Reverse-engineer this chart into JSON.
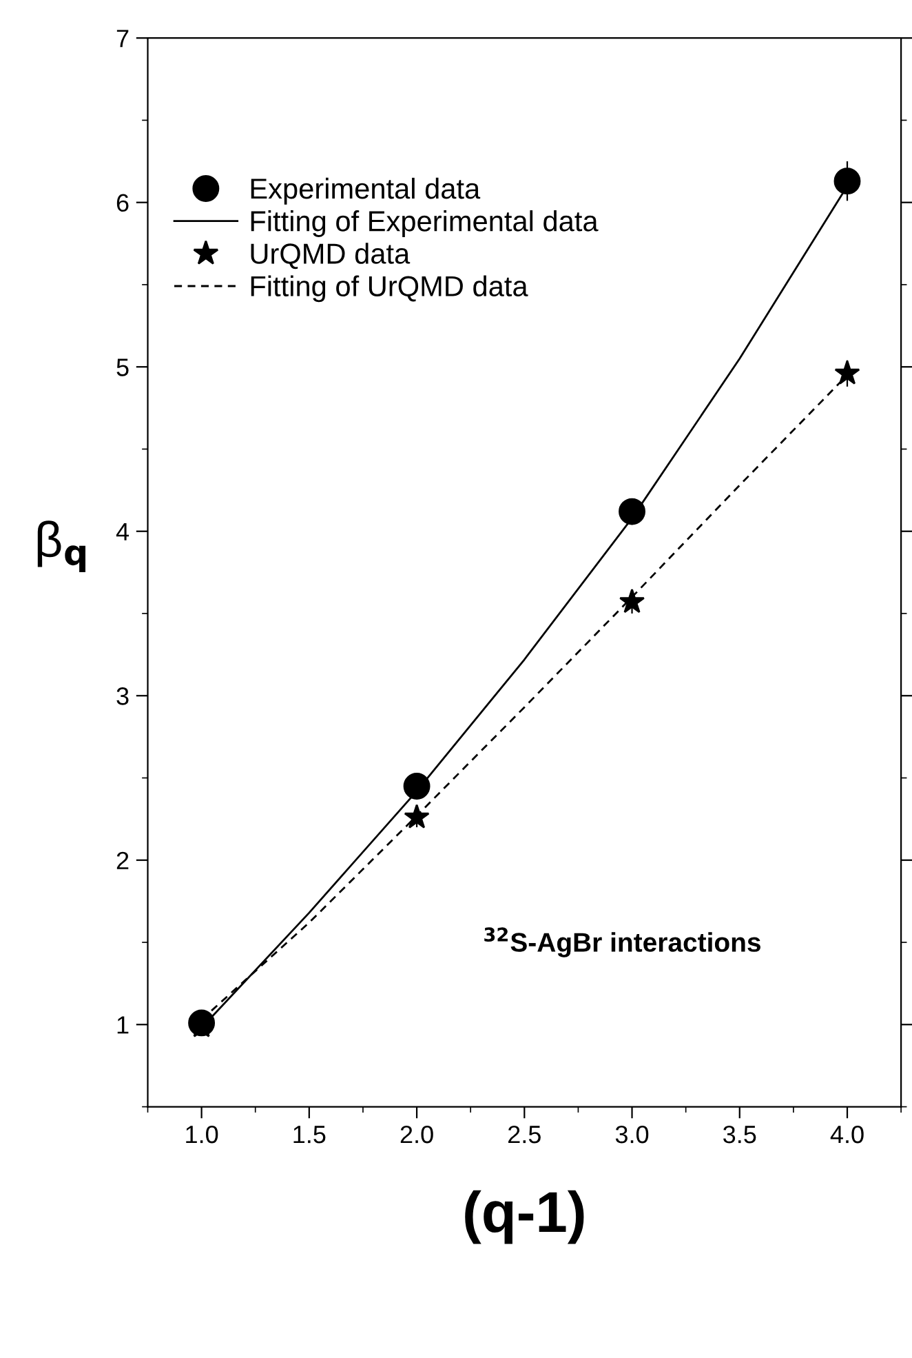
{
  "chart_data": {
    "type": "scatter",
    "xlabel": "(q-1)",
    "ylabel": "β$_{q}$",
    "xlim": [
      0.75,
      4.25
    ],
    "ylim": [
      0.5,
      7
    ],
    "xticks": [
      {
        "value": 1.0,
        "label": "1.0"
      },
      {
        "value": 1.5,
        "label": "1.5"
      },
      {
        "value": 2.0,
        "label": "2.0"
      },
      {
        "value": 2.5,
        "label": "2.5"
      },
      {
        "value": 3.0,
        "label": "3.0"
      },
      {
        "value": 3.5,
        "label": "3.5"
      },
      {
        "value": 4.0,
        "label": "4.0"
      }
    ],
    "yticks": [
      1,
      2,
      3,
      4,
      5,
      6,
      7
    ],
    "grid": false,
    "legend": "top left",
    "annotations": [
      "$^{32}$S-AgBr interactions"
    ],
    "series": [
      {
        "name": "Experimental data",
        "marker": "circle",
        "color": "#000000",
        "x": [
          1,
          2,
          3,
          4
        ],
        "values": [
          1.01,
          2.45,
          4.12,
          6.13
        ],
        "errors": [
          0.05,
          0.06,
          0.08,
          0.12
        ]
      },
      {
        "name": "Fitting of Experimental data",
        "type": "line",
        "line_style": "solid",
        "color": "#000000",
        "x": [
          1,
          1.5,
          2,
          2.5,
          3,
          3.5,
          4
        ],
        "values": [
          0.98,
          1.68,
          2.42,
          3.22,
          4.08,
          5.05,
          6.1
        ]
      },
      {
        "name": "UrQMD data",
        "marker": "star",
        "color": "#000000",
        "x": [
          1,
          2,
          3,
          4
        ],
        "values": [
          0.99,
          2.26,
          3.57,
          4.96
        ],
        "errors": [
          0.05,
          0.06,
          0.07,
          0.08
        ]
      },
      {
        "name": "Fitting of UrQMD data",
        "type": "line",
        "line_style": "dashed",
        "color": "#000000",
        "x": [
          1,
          1.5,
          2,
          2.5,
          3,
          3.5,
          4
        ],
        "values": [
          1.03,
          1.62,
          2.27,
          2.93,
          3.6,
          4.28,
          4.95
        ]
      }
    ]
  }
}
